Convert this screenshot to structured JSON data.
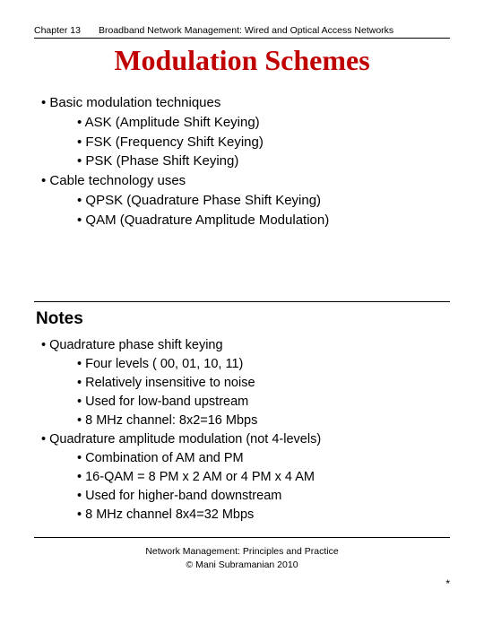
{
  "header": {
    "chapter": "Chapter 13",
    "subject": "Broadband Network Management: Wired and Optical Access Networks"
  },
  "title": "Modulation Schemes",
  "section1": {
    "items": [
      {
        "level": 1,
        "text": "Basic modulation techniques"
      },
      {
        "level": 2,
        "text": "ASK (Amplitude Shift Keying)"
      },
      {
        "level": 2,
        "text": "FSK (Frequency Shift Keying)"
      },
      {
        "level": 2,
        "text": "PSK (Phase Shift Keying)"
      },
      {
        "level": 1,
        "text": "Cable technology uses"
      },
      {
        "level": 2,
        "text": "QPSK (Quadrature Phase Shift Keying)"
      },
      {
        "level": 2,
        "text": "QAM (Quadrature Amplitude Modulation)"
      }
    ]
  },
  "notes_label": "Notes",
  "section2": {
    "items": [
      {
        "level": 1,
        "text": "Quadrature phase shift keying"
      },
      {
        "level": 2,
        "text": "Four levels ( 00, 01, 10, 11)"
      },
      {
        "level": 2,
        "text": "Relatively insensitive to noise"
      },
      {
        "level": 2,
        "text": "Used for low-band upstream"
      },
      {
        "level": 2,
        "text": "8 MHz channel: 8x2=16 Mbps"
      },
      {
        "level": 1,
        "text": "Quadrature amplitude modulation (not 4-levels)"
      },
      {
        "level": 2,
        "text": "Combination of AM and PM"
      },
      {
        "level": 2,
        "text": "16-QAM = 8 PM x  2 AM or 4 PM x 4 AM"
      },
      {
        "level": 2,
        "text": "Used for higher-band downstream"
      },
      {
        "level": 2,
        "text": "8 MHz channel 8x4=32 Mbps"
      }
    ]
  },
  "footer": {
    "line1": "Network Management: Principles and Practice",
    "line2": "© Mani Subramanian 2010"
  },
  "star": "*",
  "colors": {
    "title_color": "#c00000",
    "text_color": "#000000",
    "bg_color": "#ffffff"
  }
}
